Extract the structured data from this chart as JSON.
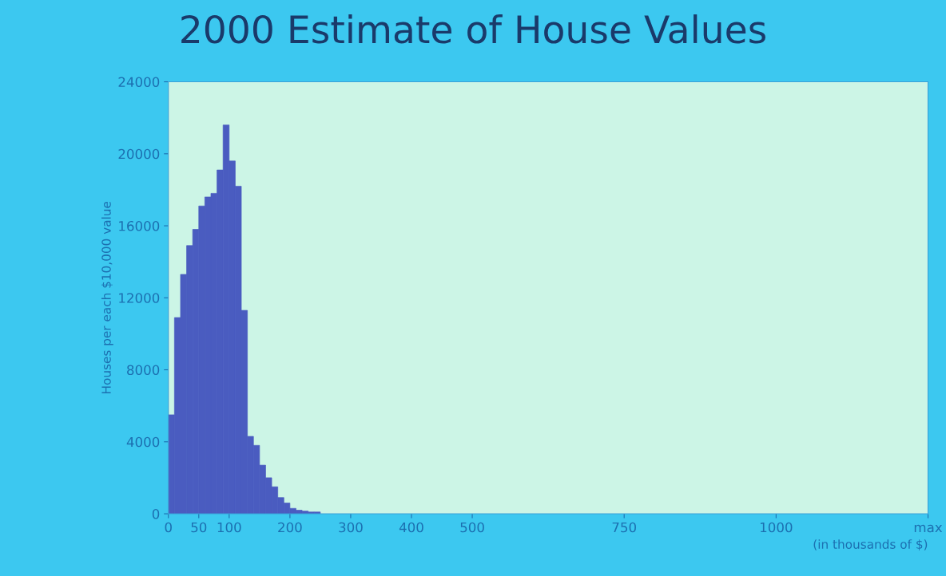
{
  "chart_data": {
    "type": "histogram",
    "title": "2000 Estimate of House Values",
    "xlabel": "(in thousands of $)",
    "ylabel": "Houses per each $10,000 value",
    "bins": [
      0,
      10,
      20,
      30,
      40,
      50,
      60,
      70,
      80,
      90,
      100,
      110,
      120,
      130,
      140,
      150,
      160,
      170,
      180,
      190,
      200,
      210,
      220,
      230,
      240,
      250
    ],
    "values": [
      5500,
      10900,
      13300,
      14900,
      15800,
      17100,
      17600,
      17800,
      19100,
      21600,
      19600,
      18200,
      11300,
      4300,
      3800,
      2700,
      2000,
      1500,
      900,
      600,
      300,
      200,
      150,
      100,
      100
    ],
    "color": "#4a5cc0",
    "xlim": [
      0,
      1250
    ],
    "xticks": [
      0,
      50,
      100,
      200,
      300,
      400,
      500,
      750,
      1000,
      {
        "value": 1250,
        "label": "max"
      }
    ],
    "ylim": [
      0,
      24000
    ],
    "yticks": [
      0,
      4000,
      8000,
      12000,
      16000,
      20000,
      24000
    ],
    "grid": false
  }
}
